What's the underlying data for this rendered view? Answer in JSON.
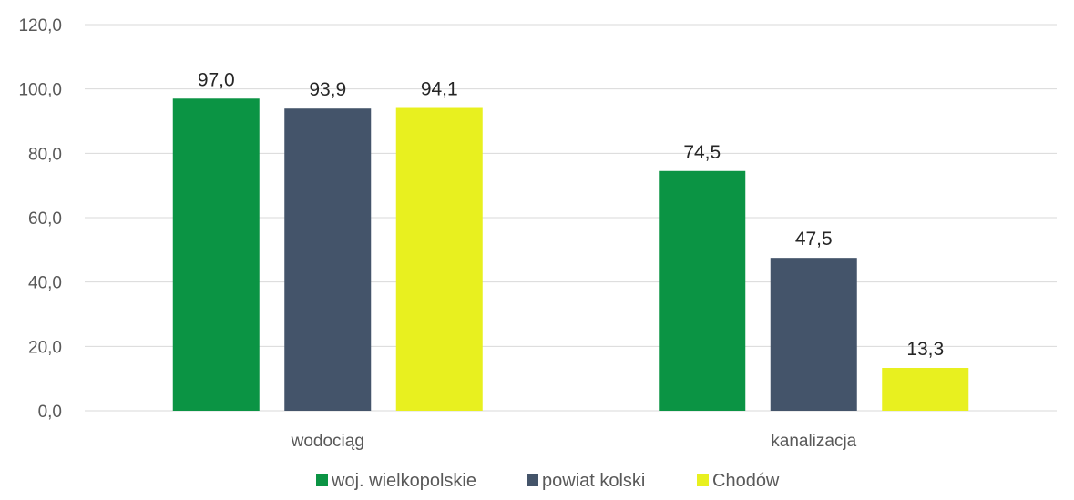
{
  "chart_data": {
    "type": "bar",
    "categories": [
      "wodociąg",
      "kanalizacja"
    ],
    "series": [
      {
        "name": "woj. wielkopolskie",
        "values": [
          97.0,
          74.5
        ],
        "color": "#0b9444",
        "labels": [
          "97,0",
          "74,5"
        ]
      },
      {
        "name": "powiat kolski",
        "values": [
          93.9,
          47.5
        ],
        "color": "#44546a",
        "labels": [
          "93,9",
          "47,5"
        ]
      },
      {
        "name": "Chodów",
        "values": [
          94.1,
          13.3
        ],
        "color": "#e8f01f",
        "labels": [
          "94,1",
          "13,3"
        ]
      }
    ],
    "ylim": [
      0,
      120
    ],
    "yticks": [
      "0,0",
      "20,0",
      "40,0",
      "60,0",
      "80,0",
      "100,0",
      "120,0"
    ],
    "grid": true,
    "legend_position": "bottom"
  }
}
